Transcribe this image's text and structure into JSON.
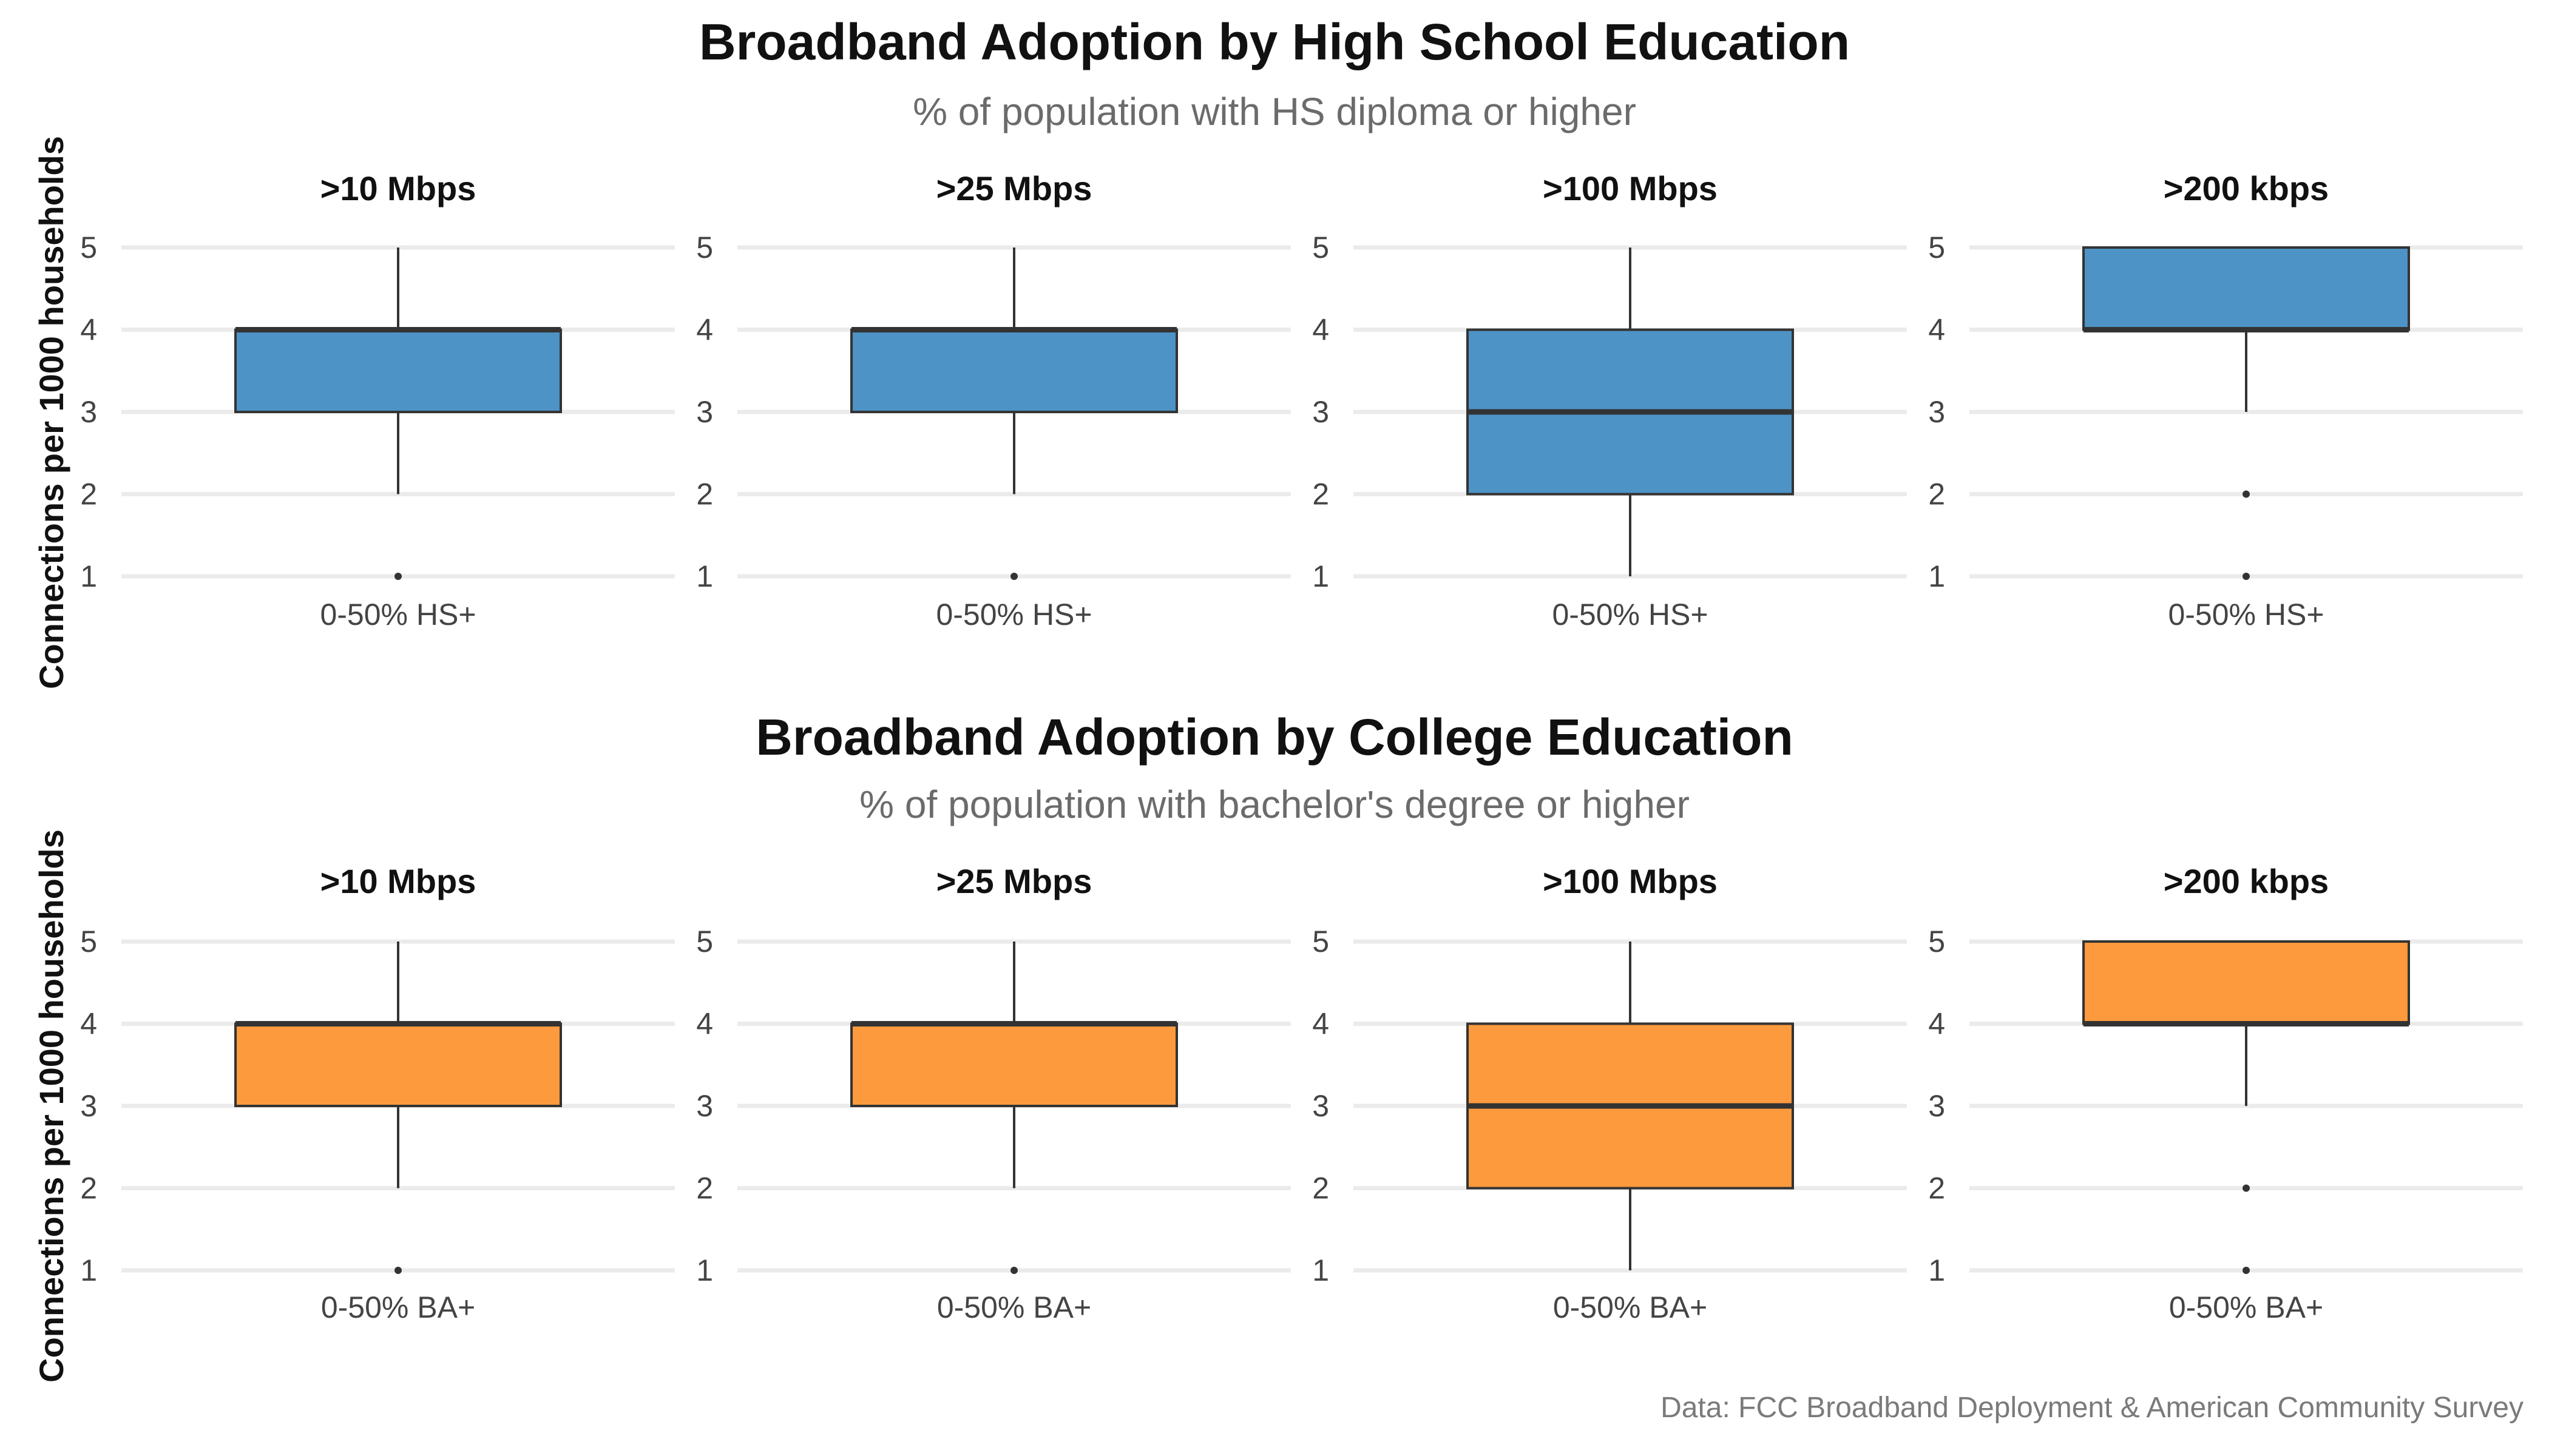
{
  "chart_data": [
    {
      "type": "box",
      "title": "Broadband Adoption by High School Education",
      "subtitle": "% of population with HS diploma or higher",
      "ylabel": "Connections per 1000 households",
      "ylim": [
        1,
        5
      ],
      "yticks": [
        1,
        2,
        3,
        4,
        5
      ],
      "fill": "#4d93c6",
      "grid": "horizontal",
      "facets": [
        {
          "title": ">10 Mbps",
          "category": "0-50% HS+",
          "whisker_low": 2,
          "q1": 3,
          "median": 4,
          "q3": 4,
          "whisker_high": 5,
          "outliers": [
            1
          ]
        },
        {
          "title": ">25 Mbps",
          "category": "0-50% HS+",
          "whisker_low": 2,
          "q1": 3,
          "median": 4,
          "q3": 4,
          "whisker_high": 5,
          "outliers": [
            1
          ]
        },
        {
          "title": ">100 Mbps",
          "category": "0-50% HS+",
          "whisker_low": 1,
          "q1": 2,
          "median": 3,
          "q3": 4,
          "whisker_high": 5,
          "outliers": []
        },
        {
          "title": ">200 kbps",
          "category": "0-50% HS+",
          "whisker_low": 3,
          "q1": 4,
          "median": 4,
          "q3": 5,
          "whisker_high": 5,
          "outliers": [
            2,
            1
          ]
        }
      ]
    },
    {
      "type": "box",
      "title": "Broadband Adoption by College Education",
      "subtitle": "% of population with bachelor's degree or higher",
      "ylabel": "Connections per 1000 households",
      "ylim": [
        1,
        5
      ],
      "yticks": [
        1,
        2,
        3,
        4,
        5
      ],
      "fill": "#fd9a3e",
      "grid": "horizontal",
      "facets": [
        {
          "title": ">10 Mbps",
          "category": "0-50% BA+",
          "whisker_low": 2,
          "q1": 3,
          "median": 4,
          "q3": 4,
          "whisker_high": 5,
          "outliers": [
            1
          ]
        },
        {
          "title": ">25 Mbps",
          "category": "0-50% BA+",
          "whisker_low": 2,
          "q1": 3,
          "median": 4,
          "q3": 4,
          "whisker_high": 5,
          "outliers": [
            1
          ]
        },
        {
          "title": ">100 Mbps",
          "category": "0-50% BA+",
          "whisker_low": 1,
          "q1": 2,
          "median": 3,
          "q3": 4,
          "whisker_high": 5,
          "outliers": []
        },
        {
          "title": ">200 kbps",
          "category": "0-50% BA+",
          "whisker_low": 3,
          "q1": 4,
          "median": 4,
          "q3": 5,
          "whisker_high": 5,
          "outliers": [
            2,
            1
          ]
        }
      ]
    }
  ],
  "caption": "Data: FCC Broadband Deployment & American Community Survey"
}
